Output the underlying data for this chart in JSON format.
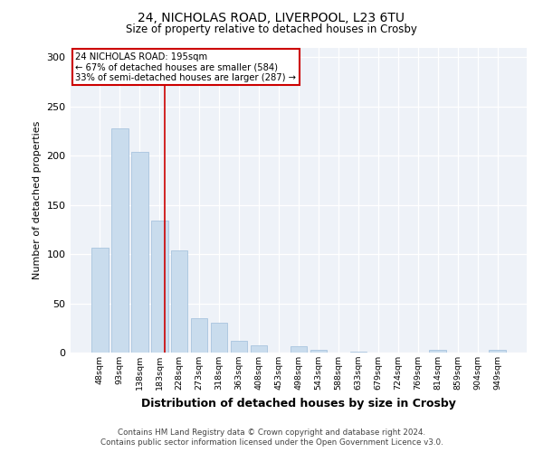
{
  "title1": "24, NICHOLAS ROAD, LIVERPOOL, L23 6TU",
  "title2": "Size of property relative to detached houses in Crosby",
  "xlabel": "Distribution of detached houses by size in Crosby",
  "ylabel": "Number of detached properties",
  "categories": [
    "48sqm",
    "93sqm",
    "138sqm",
    "183sqm",
    "228sqm",
    "273sqm",
    "318sqm",
    "363sqm",
    "408sqm",
    "453sqm",
    "498sqm",
    "543sqm",
    "588sqm",
    "633sqm",
    "679sqm",
    "724sqm",
    "769sqm",
    "814sqm",
    "859sqm",
    "904sqm",
    "949sqm"
  ],
  "values": [
    107,
    228,
    204,
    134,
    104,
    35,
    30,
    12,
    7,
    0,
    6,
    3,
    0,
    1,
    0,
    0,
    0,
    3,
    0,
    0,
    3
  ],
  "bar_color": "#c9dced",
  "bar_edge_color": "#a8c4de",
  "vline_color": "#cc0000",
  "annotation_box_color": "#ffffff",
  "annotation_box_edge": "#cc0000",
  "property_label": "24 NICHOLAS ROAD: 195sqm",
  "annotation_line1": "← 67% of detached houses are smaller (584)",
  "annotation_line2": "33% of semi-detached houses are larger (287) →",
  "footer1": "Contains HM Land Registry data © Crown copyright and database right 2024.",
  "footer2": "Contains public sector information licensed under the Open Government Licence v3.0.",
  "ylim": [
    0,
    310
  ],
  "yticks": [
    0,
    50,
    100,
    150,
    200,
    250,
    300
  ],
  "bg_color": "#eef2f8",
  "fig_bg": "#ffffff",
  "vline_x_index": 3.27
}
